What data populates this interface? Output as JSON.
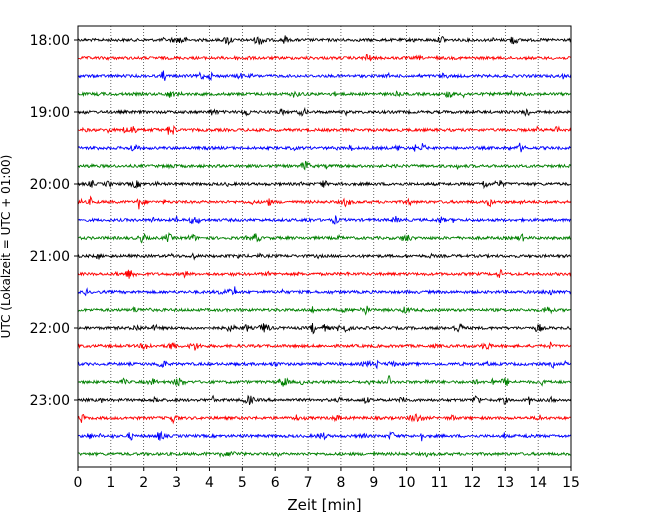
{
  "chart_data": {
    "type": "line",
    "title": "",
    "xlabel": "Zeit  [min]",
    "ylabel": "UTC (Lokalzeit = UTC + 01:00)",
    "xlim": [
      0,
      15
    ],
    "x_ticks": [
      0,
      1,
      2,
      3,
      4,
      5,
      6,
      7,
      8,
      9,
      10,
      11,
      12,
      13,
      14,
      15
    ],
    "x_tick_labels": [
      "0",
      "1",
      "2",
      "3",
      "4",
      "5",
      "6",
      "7",
      "8",
      "9",
      "10",
      "11",
      "12",
      "13",
      "14",
      "15"
    ],
    "y_ticks": [
      "18:00",
      "19:00",
      "20:00",
      "21:00",
      "22:00",
      "23:00"
    ],
    "grid": "vertical-dotted",
    "row_interval_minutes": 15,
    "color_cycle": [
      "#000000",
      "#ff0000",
      "#0000ff",
      "#008000"
    ],
    "rows": [
      {
        "start": "18:00",
        "color": "#000000"
      },
      {
        "start": "18:15",
        "color": "#ff0000"
      },
      {
        "start": "18:30",
        "color": "#0000ff"
      },
      {
        "start": "18:45",
        "color": "#008000"
      },
      {
        "start": "19:00",
        "color": "#000000"
      },
      {
        "start": "19:15",
        "color": "#ff0000"
      },
      {
        "start": "19:30",
        "color": "#0000ff"
      },
      {
        "start": "19:45",
        "color": "#008000"
      },
      {
        "start": "20:00",
        "color": "#000000"
      },
      {
        "start": "20:15",
        "color": "#ff0000"
      },
      {
        "start": "20:30",
        "color": "#0000ff"
      },
      {
        "start": "20:45",
        "color": "#008000"
      },
      {
        "start": "21:00",
        "color": "#000000"
      },
      {
        "start": "21:15",
        "color": "#ff0000"
      },
      {
        "start": "21:30",
        "color": "#0000ff"
      },
      {
        "start": "21:45",
        "color": "#008000"
      },
      {
        "start": "22:00",
        "color": "#000000"
      },
      {
        "start": "22:15",
        "color": "#ff0000"
      },
      {
        "start": "22:30",
        "color": "#0000ff"
      },
      {
        "start": "22:45",
        "color": "#008000"
      },
      {
        "start": "23:00",
        "color": "#000000"
      },
      {
        "start": "23:15",
        "color": "#ff0000"
      },
      {
        "start": "23:30",
        "color": "#0000ff"
      },
      {
        "start": "23:45",
        "color": "#008000"
      }
    ]
  }
}
